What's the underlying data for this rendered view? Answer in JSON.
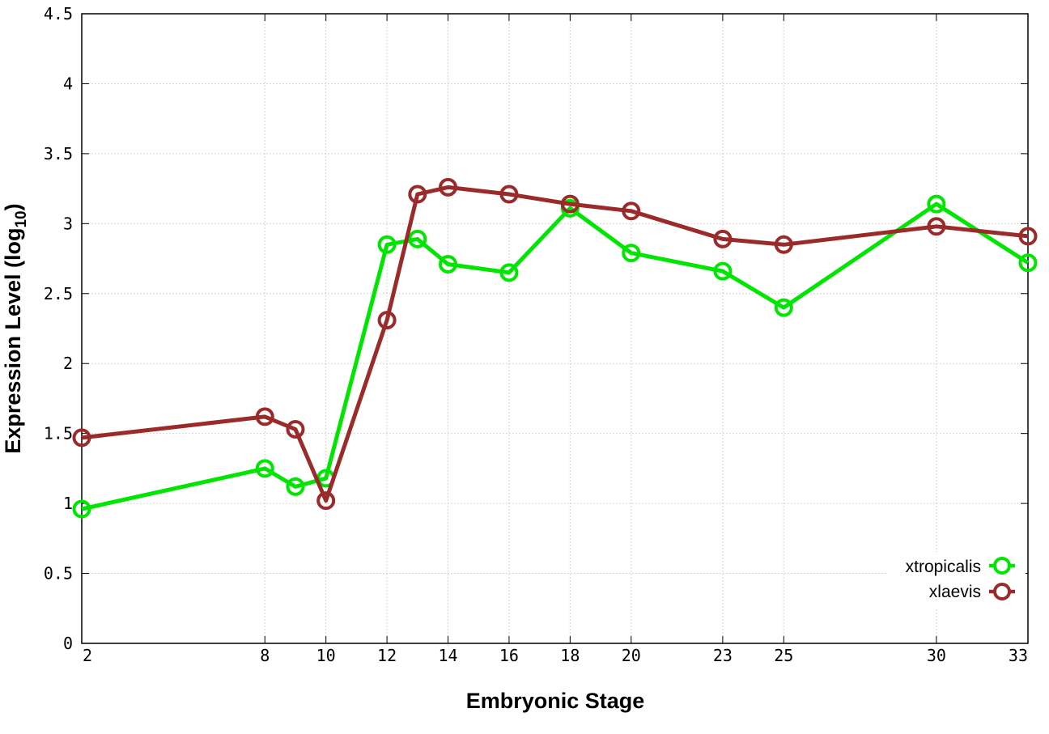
{
  "chart_data": {
    "type": "line",
    "title": "",
    "xlabel": "Embryonic Stage",
    "ylabel_main": "Expression Level (log",
    "ylabel_sub": "10",
    "ylabel_end": ")",
    "x_ticks": [
      "2",
      "8",
      "10",
      "12",
      "14",
      "16",
      "18",
      "20",
      "23",
      "25",
      "30",
      "33"
    ],
    "x_tick_values": [
      2,
      8,
      10,
      12,
      14,
      16,
      18,
      20,
      23,
      25,
      30,
      33
    ],
    "y_ticks": [
      "0",
      "0.5",
      "1",
      "1.5",
      "2",
      "2.5",
      "3",
      "3.5",
      "4",
      "4.5"
    ],
    "y_tick_values": [
      0,
      0.5,
      1,
      1.5,
      2,
      2.5,
      3,
      3.5,
      4,
      4.5
    ],
    "xlim": [
      2,
      33
    ],
    "ylim": [
      0,
      4.5
    ],
    "grid": true,
    "legend_position": "bottom-right",
    "x": [
      2,
      8,
      9,
      10,
      12,
      13,
      14,
      16,
      18,
      20,
      23,
      25,
      30,
      33
    ],
    "series": [
      {
        "name": "xtropicalis",
        "color": "#00e600",
        "values": [
          0.96,
          1.25,
          1.12,
          1.18,
          2.85,
          2.89,
          2.71,
          2.65,
          3.11,
          2.79,
          2.66,
          2.4,
          3.14,
          2.72
        ]
      },
      {
        "name": "xlaevis",
        "color": "#9b2a2a",
        "values": [
          1.47,
          1.62,
          1.53,
          1.02,
          2.31,
          3.21,
          3.26,
          3.21,
          3.14,
          3.09,
          2.89,
          2.85,
          2.98,
          2.91
        ]
      }
    ]
  }
}
